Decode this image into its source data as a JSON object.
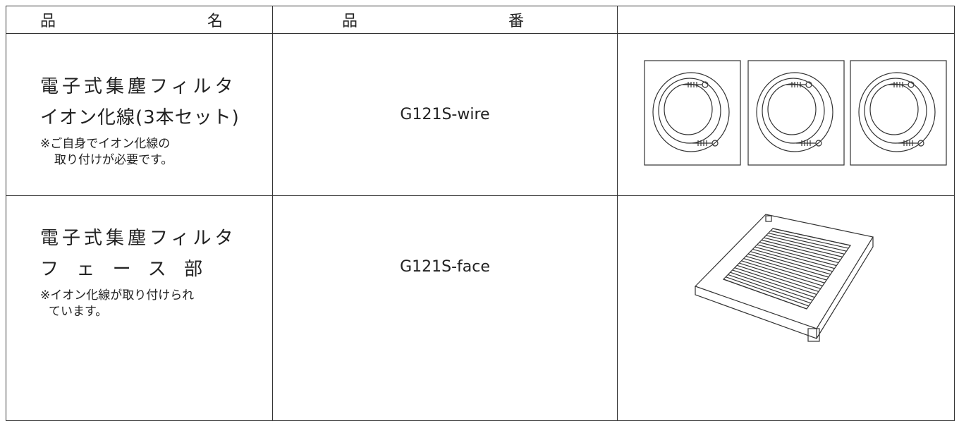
{
  "table": {
    "header": [
      "品名",
      "品番"
    ],
    "rows": [
      {
        "name": [
          "電子式集塵フィルタ",
          "イオン化線(3本セット)"
        ],
        "note": [
          "※ご自身でイオン化線の",
          "取り付けが必要です。"
        ],
        "code": "G121S-wire"
      },
      {
        "name": [
          "電子式集塵フィルタ",
          "フェース部"
        ],
        "note": [
          "※イオン化線が取り付けられ",
          "ています。"
        ],
        "code": "G121S-face"
      }
    ]
  }
}
